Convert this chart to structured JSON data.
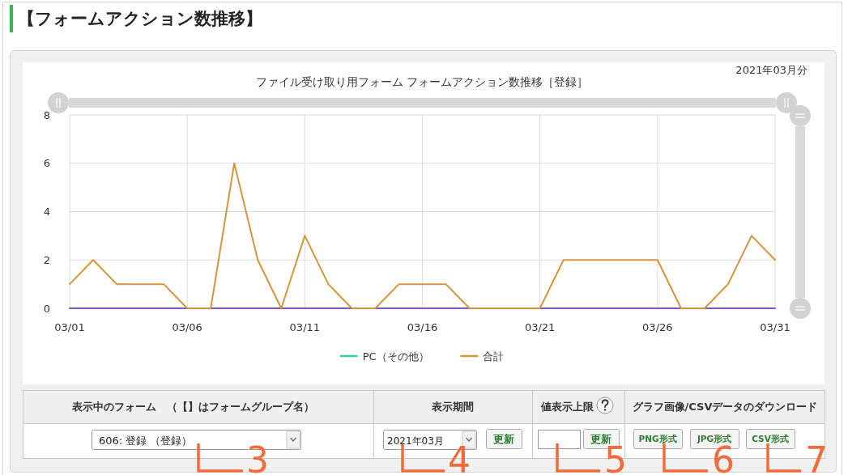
{
  "chart_data": {
    "type": "line",
    "title": "ファイル受け取り用フォーム フォームアクション数推移［登録］",
    "subtitle": "2021年03月分",
    "categories": [
      "03/01",
      null,
      null,
      null,
      null,
      "03/06",
      null,
      null,
      null,
      null,
      "03/11",
      null,
      null,
      null,
      null,
      "03/16",
      null,
      null,
      null,
      null,
      "03/21",
      null,
      null,
      null,
      null,
      "03/26",
      null,
      null,
      null,
      null,
      "03/31"
    ],
    "series": [
      {
        "name": "PC（その他）",
        "color": "#33d6a0",
        "values": [
          null,
          null,
          null,
          null,
          null,
          null,
          null,
          null,
          null,
          null,
          null,
          null,
          null,
          null,
          null,
          null,
          null,
          null,
          null,
          null,
          null,
          null,
          null,
          null,
          null,
          null,
          null,
          null,
          null,
          null,
          null
        ]
      },
      {
        "color": "#7e57c2",
        "values": [
          0,
          0,
          0,
          0,
          0,
          0,
          0,
          0,
          0,
          0,
          0,
          0,
          0,
          0,
          0,
          0,
          0,
          0,
          0,
          0,
          0,
          0,
          0,
          0,
          0,
          0,
          0,
          0,
          0,
          0,
          0
        ]
      },
      {
        "name": "合計",
        "color": "#d4963c",
        "values": [
          1,
          2,
          1,
          1,
          1,
          0,
          0,
          6,
          2,
          0,
          3,
          1,
          0,
          0,
          1,
          1,
          1,
          0,
          0,
          0,
          0,
          2,
          2,
          2,
          2,
          2,
          0,
          0,
          1,
          3,
          2
        ]
      }
    ],
    "ylim": [
      0,
      8
    ],
    "yticks": [
      0,
      2,
      4,
      6,
      8
    ],
    "grid": true,
    "legend": "bottom",
    "annotations": [
      "【フォームアクション数推移】",
      "表示中のフォーム　（【】はフォームグループ名）",
      "表示期間",
      "値表示上限",
      "グラフ画像/CSVデータのダウンロード",
      "606: 登録 （登録）",
      "2021年03月",
      "更新",
      "更新",
      "PNG形式",
      "JPG形式",
      "CSV形式",
      "3",
      "4",
      "5",
      "6",
      "7"
    ]
  }
}
